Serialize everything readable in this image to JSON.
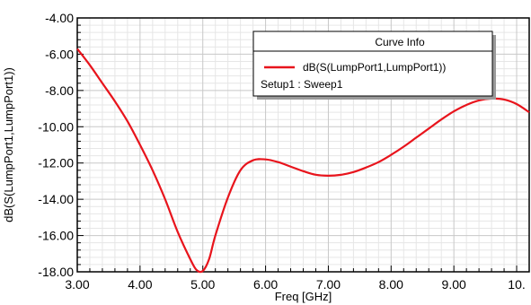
{
  "chart_data": {
    "type": "line",
    "xlabel": "Freq [GHz]",
    "ylabel": "dB(S(LumpPort1,LumpPort1))",
    "xlim": [
      3.0,
      10.2
    ],
    "ylim": [
      -18.0,
      -4.0
    ],
    "x_ticks": [
      "3.00",
      "4.00",
      "5.00",
      "6.00",
      "7.00",
      "8.00",
      "9.00",
      "10."
    ],
    "y_ticks": [
      "-4.00",
      "-6.00",
      "-8.00",
      "-10.00",
      "-12.00",
      "-14.00",
      "-16.00",
      "-18.00"
    ],
    "grid": true,
    "legend": {
      "title": "Curve Info",
      "position": "top-right",
      "entries": [
        "dB(S(LumpPort1,LumpPort1))"
      ],
      "setup_label": "Setup1 : Sweep1"
    },
    "series": [
      {
        "name": "dB(S(LumpPort1,LumpPort1))",
        "color": "#e8141c",
        "x": [
          3.0,
          3.2,
          3.4,
          3.6,
          3.8,
          4.0,
          4.2,
          4.4,
          4.6,
          4.8,
          4.9,
          5.0,
          5.1,
          5.2,
          5.4,
          5.6,
          5.8,
          6.0,
          6.2,
          6.4,
          6.6,
          6.8,
          7.0,
          7.2,
          7.4,
          7.6,
          7.8,
          8.0,
          8.2,
          8.4,
          8.6,
          8.8,
          9.0,
          9.2,
          9.4,
          9.6,
          9.8,
          10.0,
          10.2
        ],
        "y": [
          -5.7,
          -6.6,
          -7.6,
          -8.6,
          -9.7,
          -11.0,
          -12.4,
          -14.0,
          -15.8,
          -17.3,
          -17.9,
          -17.95,
          -17.3,
          -16.0,
          -13.9,
          -12.4,
          -11.85,
          -11.8,
          -11.95,
          -12.2,
          -12.45,
          -12.65,
          -12.7,
          -12.65,
          -12.5,
          -12.25,
          -11.95,
          -11.55,
          -11.1,
          -10.6,
          -10.1,
          -9.6,
          -9.15,
          -8.8,
          -8.55,
          -8.45,
          -8.5,
          -8.75,
          -9.2
        ]
      }
    ]
  }
}
